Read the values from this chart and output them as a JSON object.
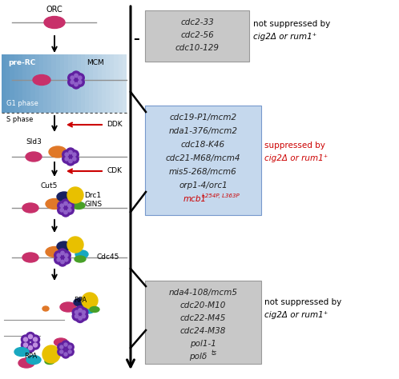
{
  "fig_width": 4.98,
  "fig_height": 4.74,
  "bg_color": "#ffffff",
  "left_panel_bg_left": "#6aaad4",
  "left_panel_bg_right": "#ddeeff",
  "box1_bg": "#c8c8c8",
  "box2_bg": "#c5d8ed",
  "box3_bg": "#c8c8c8",
  "box1_lines": [
    "cdc2-33",
    "cdc2-56",
    "cdc10-129"
  ],
  "box2_lines": [
    "cdc19-P1/mcm2",
    "nda1-376/mcm2",
    "cdc18-K46",
    "cdc21-M68/mcm4",
    "mis5-268/mcm6",
    "orp1-4/orc1"
  ],
  "box2_last_main": "mcb1",
  "box2_last_sup": "L254P, L363P",
  "box3_lines": [
    "nda4-108/mcm5",
    "cdc20-M10",
    "cdc22-M45",
    "cdc24-M38",
    "pol1-1"
  ],
  "box3_last_main": "polδ",
  "box3_last_sup": "ts",
  "label1a": "not suppressed by",
  "label1b": "cig2Δ or rum1⁺",
  "label2a": "suppressed by",
  "label2b": "cig2Δ or rum1⁺",
  "label3a": "not suppressed by",
  "label3b": "cig2Δ or rum1⁺",
  "red": "#cc0000",
  "purple_dark": "#6020a0",
  "purple_light": "#9060c8",
  "pink": "#c8306a",
  "orange": "#e07828",
  "yellow": "#e8c000",
  "green": "#48a028",
  "navy": "#182060",
  "cyan": "#18a8c0",
  "gray_line": "#909090"
}
